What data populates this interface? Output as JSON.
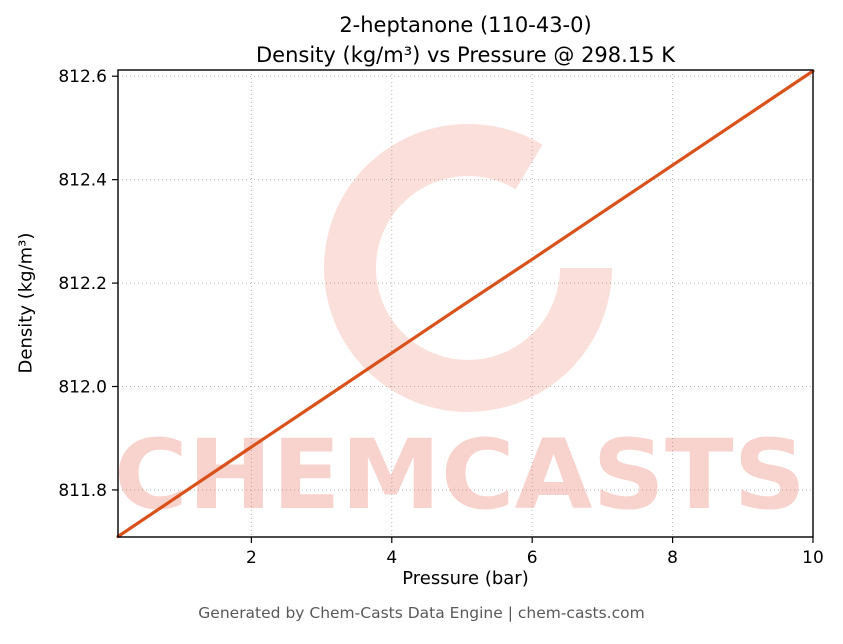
{
  "page": {
    "title_line1": "2-heptanone (110-43-0)",
    "title_line2": "Density (kg/m³) vs Pressure @ 298.15 K",
    "xlabel": "Pressure (bar)",
    "ylabel": "Density (kg/m³)",
    "footer": "Generated by Chem-Casts Data Engine | chem-casts.com",
    "watermark_text": "CHEMCASTS"
  },
  "chart_data": {
    "type": "line",
    "title": "2-heptanone (110-43-0) — Density (kg/m³) vs Pressure @ 298.15 K",
    "xlabel": "Pressure (bar)",
    "ylabel": "Density (kg/m³)",
    "xlim": [
      0.1,
      10
    ],
    "ylim": [
      811.709,
      812.612
    ],
    "xticks": [
      2,
      4,
      6,
      8,
      10
    ],
    "yticks": [
      811.8,
      812.0,
      812.2,
      812.4,
      812.6
    ],
    "grid": "dotted",
    "legend": "none",
    "line_color": "#d9521c",
    "watermark_color": "#e8604a",
    "series": [
      {
        "name": "Density @ 298.15 K",
        "x": [
          0.1,
          1,
          2,
          3,
          4,
          5,
          6,
          7,
          8,
          9,
          10
        ],
        "y": [
          811.71,
          811.792,
          811.883,
          811.974,
          812.065,
          812.156,
          812.246,
          812.337,
          812.428,
          812.519,
          812.61
        ]
      }
    ]
  }
}
